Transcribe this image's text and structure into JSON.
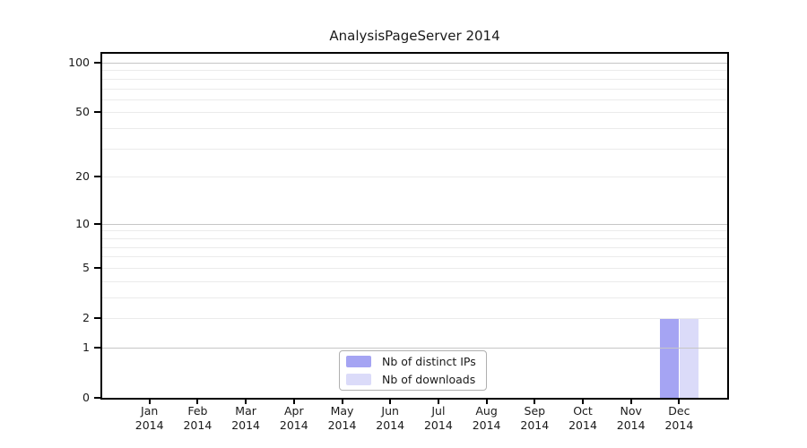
{
  "chart_data": {
    "type": "bar",
    "title": "AnalysisPageServer 2014",
    "year_label": "2014",
    "categories": [
      "Jan",
      "Feb",
      "Mar",
      "Apr",
      "May",
      "Jun",
      "Jul",
      "Aug",
      "Sep",
      "Oct",
      "Nov",
      "Dec"
    ],
    "series": [
      {
        "name": "Nb of distinct IPs",
        "color": "#a5a4f3",
        "values": [
          0,
          0,
          0,
          0,
          0,
          0,
          0,
          0,
          0,
          0,
          0,
          2
        ]
      },
      {
        "name": "Nb of downloads",
        "color": "#dbdbf9",
        "values": [
          0,
          0,
          0,
          0,
          0,
          0,
          0,
          0,
          0,
          0,
          0,
          2
        ]
      }
    ],
    "y_scale": "log1p",
    "y_tick_values": [
      0,
      1,
      2,
      5,
      10,
      20,
      50,
      100
    ],
    "y_major_grid_values": [
      1,
      10,
      100
    ],
    "y_minor_grid_values": [
      2,
      3,
      4,
      5,
      6,
      7,
      8,
      9,
      20,
      30,
      40,
      50,
      60,
      70,
      80,
      90
    ],
    "ylim": [
      0,
      114
    ],
    "grid": true,
    "legend": {
      "position": "lower center"
    }
  }
}
